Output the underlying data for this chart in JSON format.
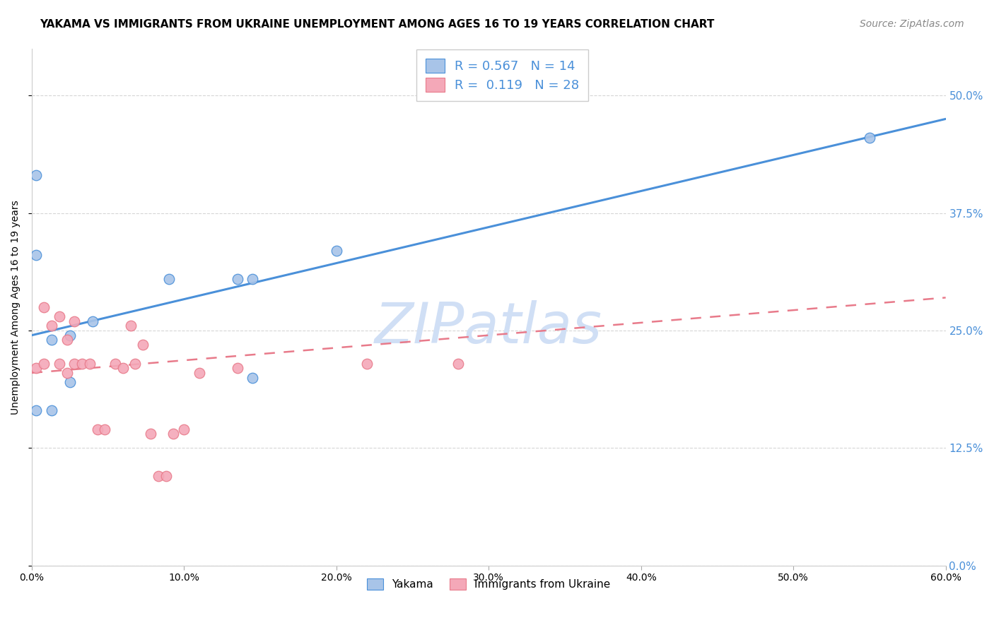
{
  "title": "YAKAMA VS IMMIGRANTS FROM UKRAINE UNEMPLOYMENT AMONG AGES 16 TO 19 YEARS CORRELATION CHART",
  "source": "Source: ZipAtlas.com",
  "ylabel": "Unemployment Among Ages 16 to 19 years",
  "xlabel_ticks": [
    "0.0%",
    "10.0%",
    "20.0%",
    "30.0%",
    "40.0%",
    "50.0%",
    "60.0%"
  ],
  "xlabel_vals": [
    0.0,
    0.1,
    0.2,
    0.3,
    0.4,
    0.5,
    0.6
  ],
  "ylabel_ticks": [
    "0.0%",
    "12.5%",
    "25.0%",
    "37.5%",
    "50.0%"
  ],
  "ylabel_vals": [
    0.0,
    0.125,
    0.25,
    0.375,
    0.5
  ],
  "xlim": [
    0.0,
    0.6
  ],
  "ylim": [
    0.0,
    0.55
  ],
  "legend_yakama_label": "Yakama",
  "legend_ukraine_label": "Immigrants from Ukraine",
  "R_yakama": 0.567,
  "N_yakama": 14,
  "R_ukraine": 0.119,
  "N_ukraine": 28,
  "yakama_color": "#a8c4e8",
  "ukraine_color": "#f4a8b8",
  "trendline_yakama_color": "#4a90d9",
  "trendline_ukraine_color": "#e87a8a",
  "watermark_text": "ZIPatlas",
  "watermark_color": "#d0dff5",
  "background_color": "#ffffff",
  "title_fontsize": 11,
  "source_fontsize": 10,
  "tick_label_color_right": "#4a90d9",
  "yakama_x": [
    0.003,
    0.003,
    0.003,
    0.013,
    0.013,
    0.025,
    0.025,
    0.04,
    0.09,
    0.135,
    0.145,
    0.145,
    0.2,
    0.55
  ],
  "yakama_y": [
    0.415,
    0.33,
    0.165,
    0.24,
    0.165,
    0.245,
    0.195,
    0.26,
    0.305,
    0.305,
    0.305,
    0.2,
    0.335,
    0.455
  ],
  "ukraine_x": [
    0.003,
    0.008,
    0.008,
    0.013,
    0.018,
    0.018,
    0.023,
    0.023,
    0.028,
    0.028,
    0.033,
    0.038,
    0.043,
    0.048,
    0.055,
    0.06,
    0.065,
    0.068,
    0.073,
    0.078,
    0.083,
    0.088,
    0.093,
    0.1,
    0.11,
    0.135,
    0.22,
    0.28
  ],
  "ukraine_y": [
    0.21,
    0.275,
    0.215,
    0.255,
    0.265,
    0.215,
    0.24,
    0.205,
    0.26,
    0.215,
    0.215,
    0.215,
    0.145,
    0.145,
    0.215,
    0.21,
    0.255,
    0.215,
    0.235,
    0.14,
    0.095,
    0.095,
    0.14,
    0.145,
    0.205,
    0.21,
    0.215,
    0.215
  ],
  "trendline_yakama_x0": 0.0,
  "trendline_yakama_x1": 0.6,
  "trendline_yakama_y0": 0.245,
  "trendline_yakama_y1": 0.475,
  "trendline_ukraine_x0": 0.0,
  "trendline_ukraine_x1": 0.6,
  "trendline_ukraine_y0": 0.205,
  "trendline_ukraine_y1": 0.285
}
